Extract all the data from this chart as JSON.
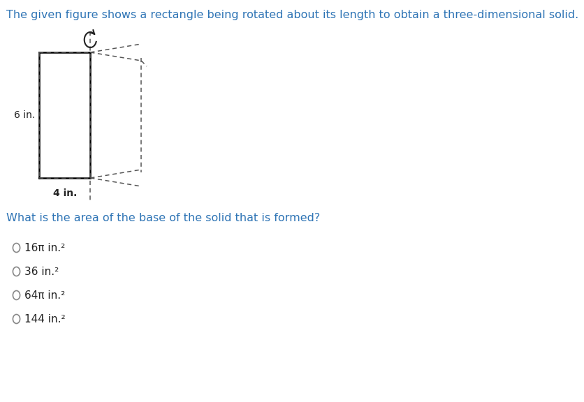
{
  "title": "The given figure shows a rectangle being rotated about its length to obtain a three-dimensional solid.",
  "title_color": "#2E74B5",
  "title_fontsize": 11.5,
  "question_text": "What is the area of the base of the solid that is formed?",
  "question_color": "#2E74B5",
  "question_fontsize": 11.5,
  "options": [
    "16π in.²",
    "36 in.²",
    "64π in.²",
    "144 in.²"
  ],
  "option_fontsize": 11,
  "option_color": "#222222",
  "label_6in": "6 in.",
  "label_4in": "4 in.",
  "bg_color": "#ffffff",
  "rect_color": "#000000",
  "dashed_color": "#555555",
  "axis_line_color": "#222222"
}
